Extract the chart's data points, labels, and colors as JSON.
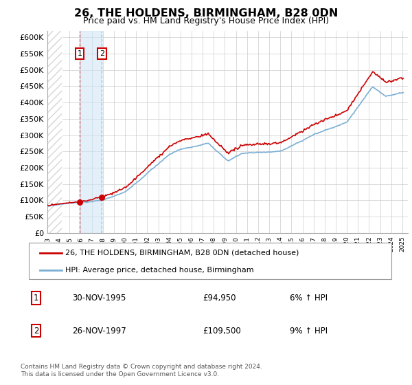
{
  "title": "26, THE HOLDENS, BIRMINGHAM, B28 0DN",
  "subtitle": "Price paid vs. HM Land Registry's House Price Index (HPI)",
  "ytick_labels": [
    "£0",
    "£50K",
    "£100K",
    "£150K",
    "£200K",
    "£250K",
    "£300K",
    "£350K",
    "£400K",
    "£450K",
    "£500K",
    "£550K",
    "£600K"
  ],
  "yticks": [
    0,
    50000,
    100000,
    150000,
    200000,
    250000,
    300000,
    350000,
    400000,
    450000,
    500000,
    550000,
    600000
  ],
  "sale1_year": 1995.917,
  "sale1_price": 94950,
  "sale1_date": "30-NOV-1995",
  "sale1_pct": "6% ↑ HPI",
  "sale2_year": 1997.917,
  "sale2_price": 109500,
  "sale2_date": "26-NOV-1997",
  "sale2_pct": "9% ↑ HPI",
  "legend_line1": "26, THE HOLDENS, BIRMINGHAM, B28 0DN (detached house)",
  "legend_line2": "HPI: Average price, detached house, Birmingham",
  "footer": "Contains HM Land Registry data © Crown copyright and database right 2024.\nThis data is licensed under the Open Government Licence v3.0.",
  "hpi_color": "#7bafd4",
  "price_color": "#cc0000",
  "grid_color": "#cccccc",
  "xmin": 1993,
  "xmax": 2025.5,
  "ymin": 0,
  "ymax": 620000
}
